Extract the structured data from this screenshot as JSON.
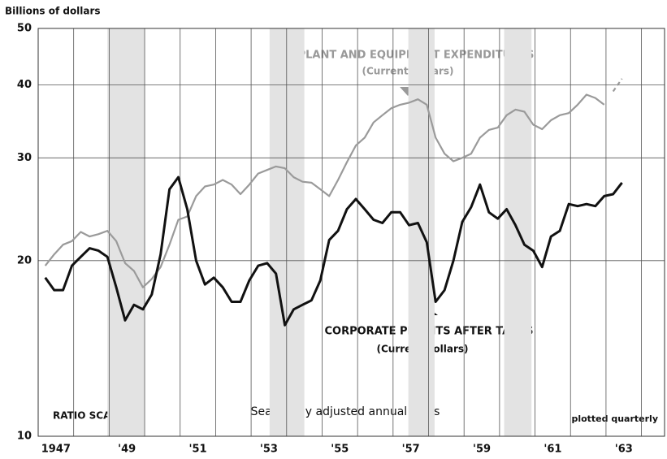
{
  "chart_data": {
    "type": "line",
    "ylabel": "Billions of dollars",
    "log_scale": true,
    "ylim": [
      10,
      50
    ],
    "yticks": [
      10,
      20,
      30,
      40,
      50
    ],
    "xlim": [
      1947,
      1964.65
    ],
    "xticks": [
      {
        "value": 1947.5,
        "label": "1947"
      },
      {
        "value": 1949.5,
        "label": "'49"
      },
      {
        "value": 1951.5,
        "label": "'51"
      },
      {
        "value": 1953.5,
        "label": "'53"
      },
      {
        "value": 1955.5,
        "label": "'55"
      },
      {
        "value": 1957.5,
        "label": "'57"
      },
      {
        "value": 1959.5,
        "label": "'59"
      },
      {
        "value": 1961.5,
        "label": "'61"
      },
      {
        "value": 1963.5,
        "label": "'63"
      }
    ],
    "xgrid": [
      1948,
      1949,
      1950,
      1951,
      1952,
      1953,
      1954,
      1955,
      1956,
      1957,
      1958,
      1959,
      1960,
      1961,
      1962,
      1963,
      1964
    ],
    "grid": true,
    "recessions": [
      [
        1948.95,
        1950.0
      ],
      [
        1953.52,
        1954.5
      ],
      [
        1957.43,
        1958.17
      ],
      [
        1960.13,
        1960.9
      ]
    ],
    "annotations": [
      "RATIO SCALE",
      "Seasonally adjusted annual rates",
      "plotted quarterly"
    ],
    "x": [
      1947.2,
      1947.45,
      1947.7,
      1947.95,
      1948.2,
      1948.45,
      1948.7,
      1948.95,
      1949.2,
      1949.45,
      1949.7,
      1949.95,
      1950.2,
      1950.45,
      1950.7,
      1950.95,
      1951.2,
      1951.45,
      1951.7,
      1951.95,
      1952.2,
      1952.45,
      1952.7,
      1952.95,
      1953.2,
      1953.45,
      1953.7,
      1953.95,
      1954.2,
      1954.45,
      1954.7,
      1954.95,
      1955.2,
      1955.45,
      1955.7,
      1955.95,
      1956.2,
      1956.45,
      1956.7,
      1956.95,
      1957.2,
      1957.45,
      1957.7,
      1957.95,
      1958.2,
      1958.45,
      1958.7,
      1958.95,
      1959.2,
      1959.45,
      1959.7,
      1959.95,
      1960.2,
      1960.45,
      1960.7,
      1960.95,
      1961.2,
      1961.45,
      1961.7,
      1961.95,
      1962.2,
      1962.45,
      1962.7,
      1962.95,
      1963.2,
      1963.45
    ],
    "series": [
      {
        "name": "PLANT AND EQUIPMENT EXPENDITURES",
        "subtitle": "(Current dollars)",
        "color": "#9a9a9a",
        "values": [
          19.6,
          20.5,
          21.3,
          21.6,
          22.4,
          22.0,
          22.2,
          22.5,
          21.6,
          19.8,
          19.2,
          18.0,
          18.6,
          19.5,
          21.3,
          23.5,
          23.8,
          25.8,
          26.8,
          27.0,
          27.5,
          27.0,
          26.0,
          27.0,
          28.2,
          28.6,
          29.0,
          28.8,
          27.8,
          27.3,
          27.2,
          26.5,
          25.8,
          27.5,
          29.5,
          31.5,
          32.5,
          34.5,
          35.5,
          36.5,
          37.0,
          37.3,
          37.8,
          37.0,
          32.5,
          30.5,
          29.6,
          30.0,
          30.5,
          32.5,
          33.5,
          33.8,
          35.5,
          36.3,
          36.0,
          34.2,
          33.6,
          34.8,
          35.5,
          35.8,
          37.0,
          38.5,
          38.0,
          37.0,
          null,
          null
        ],
        "dashed_values": [
          null,
          null,
          null,
          null,
          null,
          null,
          null,
          null,
          null,
          null,
          null,
          null,
          null,
          null,
          null,
          null,
          null,
          null,
          null,
          null,
          null,
          null,
          null,
          null,
          null,
          null,
          null,
          null,
          null,
          null,
          null,
          null,
          null,
          null,
          null,
          null,
          null,
          null,
          null,
          null,
          null,
          null,
          null,
          null,
          null,
          null,
          null,
          null,
          null,
          null,
          null,
          null,
          null,
          null,
          null,
          null,
          null,
          null,
          null,
          null,
          null,
          null,
          null,
          null,
          39.0,
          41.0
        ]
      },
      {
        "name": "CORPORATE PROFITS AFTER TAXES",
        "subtitle": "(Current dollars)",
        "color": "#111111",
        "values": [
          18.7,
          17.8,
          17.8,
          19.6,
          20.3,
          21.0,
          20.8,
          20.3,
          18.0,
          15.8,
          16.8,
          16.5,
          17.5,
          20.5,
          26.5,
          27.8,
          24.5,
          20.0,
          18.2,
          18.7,
          18.0,
          17.0,
          17.0,
          18.5,
          19.6,
          19.8,
          19.0,
          15.5,
          16.5,
          16.8,
          17.1,
          18.5,
          21.7,
          22.5,
          24.5,
          25.5,
          24.5,
          23.5,
          23.2,
          24.2,
          24.2,
          23.0,
          23.2,
          21.5,
          17.0,
          17.8,
          20.0,
          23.3,
          24.7,
          27.0,
          24.2,
          23.6,
          24.5,
          23.0,
          21.3,
          20.8,
          19.5,
          22.0,
          22.5,
          25.0,
          24.8,
          25.0,
          24.8,
          25.8,
          26.0,
          27.2
        ]
      }
    ]
  }
}
